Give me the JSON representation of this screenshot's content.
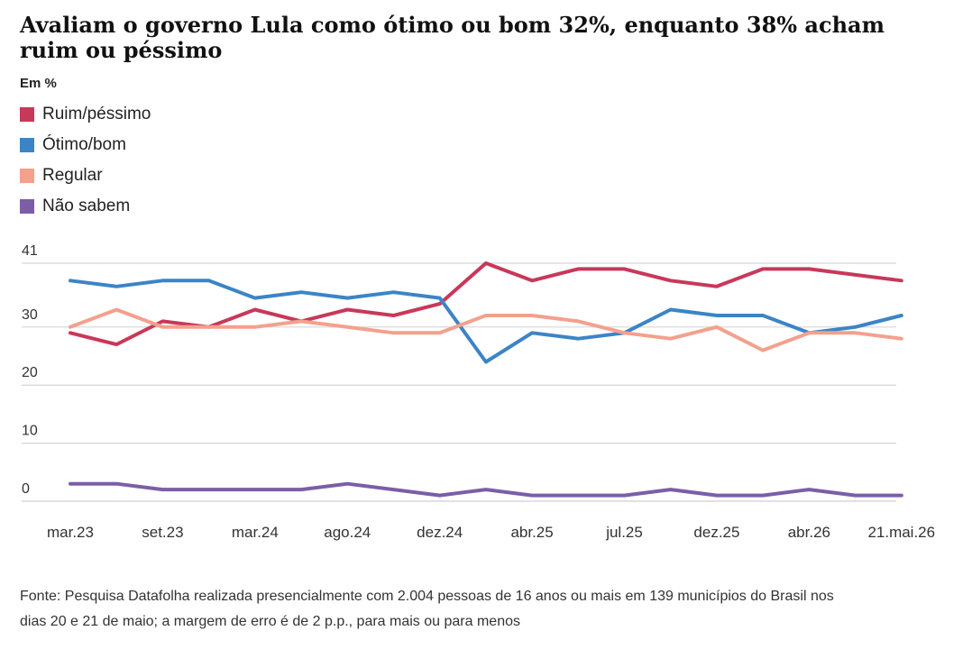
{
  "title": "Avaliam o governo Lula como ótimo ou bom 32%, enquanto 38% acham ruim ou péssimo",
  "source": {
    "line1": "Fonte: Pesquisa Datafolha realizada presencialmente com 2.004 pessoas de 16 anos ou mais em 139 municípios do Brasil nos",
    "line2": "dias 20 e 21 de maio; a margem de erro é de 2 p.p., para mais ou para menos"
  },
  "chart_data": {
    "type": "line",
    "ylabel": "Em %",
    "ylim": [
      0,
      41
    ],
    "yticks": [
      0,
      10,
      20,
      30,
      41
    ],
    "grid": true,
    "legend_position": "top-left",
    "xtick_labels": [
      "mar.23",
      "set.23",
      "mar.24",
      "ago.24",
      "dez.24",
      "abr.25",
      "jul.25",
      "dez.25",
      "abr.26",
      "21.mai.26"
    ],
    "xtick_index": [
      0,
      3,
      6,
      9,
      12,
      15,
      18,
      21,
      24,
      27
    ],
    "series": [
      {
        "name": "Ruim/péssimo",
        "color": "#c8385a",
        "values": [
          29,
          27,
          31,
          30,
          33,
          31,
          33,
          32,
          34,
          41,
          38,
          40,
          40,
          38,
          37,
          40,
          40,
          39,
          38
        ]
      },
      {
        "name": "Ótimo/bom",
        "color": "#3c84c6",
        "values": [
          38,
          37,
          38,
          38,
          35,
          36,
          35,
          36,
          35,
          24,
          29,
          28,
          29,
          33,
          32,
          32,
          29,
          30,
          32
        ]
      },
      {
        "name": "Regular",
        "color": "#f4a08d",
        "values": [
          30,
          33,
          30,
          30,
          30,
          31,
          30,
          29,
          29,
          32,
          32,
          31,
          29,
          28,
          30,
          26,
          29,
          29,
          28
        ]
      },
      {
        "name": "Não sabem",
        "color": "#7b5ea7",
        "values": [
          3,
          3,
          2,
          2,
          2,
          2,
          3,
          2,
          1,
          2,
          1,
          1,
          1,
          2,
          1,
          1,
          2,
          1,
          1
        ]
      }
    ]
  }
}
